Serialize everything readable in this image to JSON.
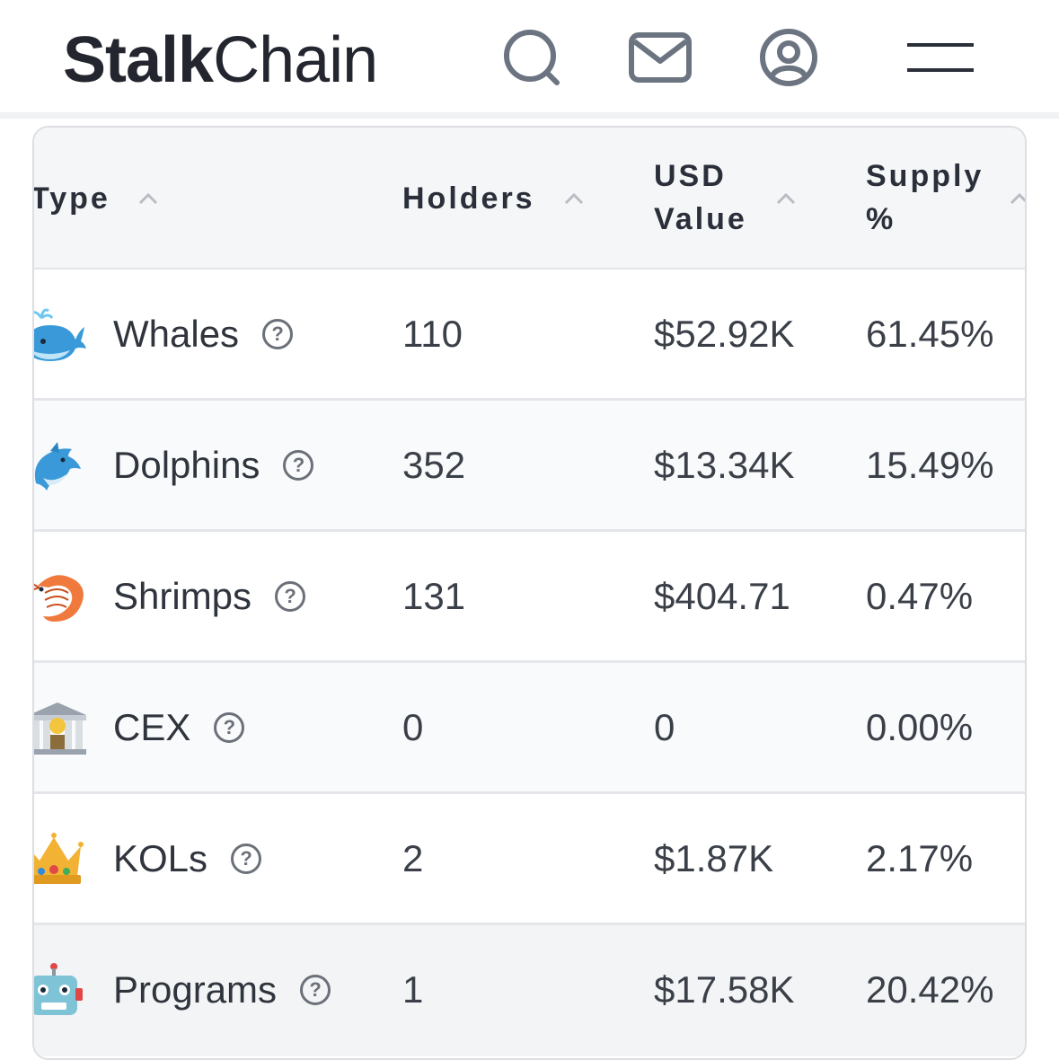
{
  "header": {
    "logo_bold": "Stalk",
    "logo_light": "Chain",
    "icons": [
      "search-icon",
      "mail-icon",
      "user-icon",
      "menu-icon"
    ]
  },
  "table": {
    "columns": {
      "type": "Type",
      "holders": "Holders",
      "usd_line1": "USD",
      "usd_line2": "Value",
      "supply_line1": "Supply",
      "supply_line2": "%"
    },
    "help_glyph": "?",
    "rows": [
      {
        "icon": "whale-icon",
        "type": "Whales",
        "holders": "110",
        "usd": "$52.92K",
        "supply": "61.45%"
      },
      {
        "icon": "dolphin-icon",
        "type": "Dolphins",
        "holders": "352",
        "usd": "$13.34K",
        "supply": "15.49%"
      },
      {
        "icon": "shrimp-icon",
        "type": "Shrimps",
        "holders": "131",
        "usd": "$404.71",
        "supply": "0.47%"
      },
      {
        "icon": "bank-icon",
        "type": "CEX",
        "holders": "0",
        "usd": "0",
        "supply": "0.00%"
      },
      {
        "icon": "crown-icon",
        "type": "KOLs",
        "holders": "2",
        "usd": "$1.87K",
        "supply": "2.17%"
      },
      {
        "icon": "robot-icon",
        "type": "Programs",
        "holders": "1",
        "usd": "$17.58K",
        "supply": "20.42%"
      }
    ]
  },
  "colors": {
    "text": "#2a2f3a",
    "icon_gray": "#6b7480",
    "header_bg": "#f5f6f7",
    "border": "#dcdee2"
  }
}
